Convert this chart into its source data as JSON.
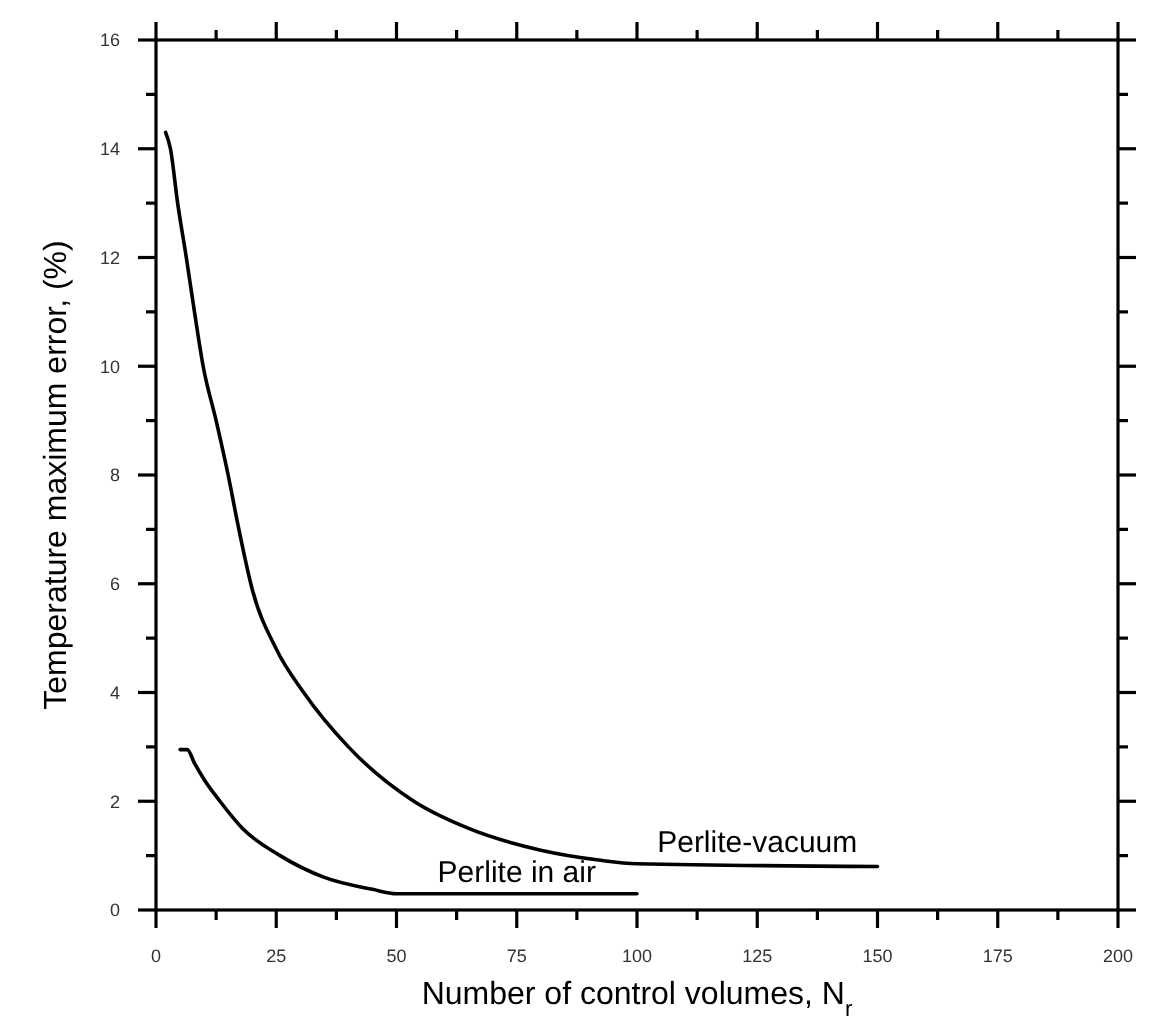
{
  "chart_data": {
    "type": "line",
    "xlabel": "Number of control volumes, N$_{r}$",
    "ylabel": "Temperature maximum error, (%)",
    "xlim": [
      0,
      200
    ],
    "ylim": [
      0,
      16
    ],
    "xticks": [
      0,
      {
        "value": 12.5,
        "label": null
      },
      25,
      {
        "value": 37.5,
        "label": null
      },
      50,
      {
        "value": 62.5,
        "label": null
      },
      75,
      {
        "value": 87.5,
        "label": null
      },
      100,
      {
        "value": 112.5,
        "label": null
      },
      125,
      {
        "value": 137.5,
        "label": null
      },
      150,
      {
        "value": 162.5,
        "label": null
      },
      175,
      {
        "value": 187.5,
        "label": null
      },
      200
    ],
    "yticks": [
      0,
      {
        "value": 1,
        "label": null
      },
      2,
      {
        "value": 3,
        "label": null
      },
      4,
      {
        "value": 5,
        "label": null
      },
      6,
      {
        "value": 7,
        "label": null
      },
      8,
      {
        "value": 9,
        "label": null
      },
      10,
      {
        "value": 11,
        "label": null
      },
      12,
      {
        "value": 13,
        "label": null
      },
      14,
      {
        "value": 15,
        "label": null
      },
      16
    ],
    "grid": false,
    "marker": "none",
    "line_style": "solid",
    "series": [
      {
        "name": "Perlite-vacuum",
        "color": "#000000",
        "x": [
          2,
          3,
          4.5,
          6.3,
          8,
          9.8,
          12.5,
          15,
          17,
          20,
          25,
          30.7,
          40,
          53.6,
          65,
          80,
          92,
          100,
          150
        ],
        "values": [
          14.3,
          14,
          13,
          12,
          11,
          10,
          9,
          8,
          7.1,
          5.9,
          4.8,
          4,
          3,
          2,
          1.5,
          1.1,
          0.92,
          0.85,
          0.8
        ]
      },
      {
        "name": "Perlite in air",
        "color": "#000000",
        "x": [
          5,
          6.5,
          8,
          10,
          13.3,
          18,
          25.8,
          35,
          45,
          50,
          100
        ],
        "values": [
          2.95,
          2.95,
          2.7,
          2.4,
          2,
          1.5,
          1,
          0.6,
          0.38,
          0.3,
          0.3
        ]
      }
    ]
  }
}
